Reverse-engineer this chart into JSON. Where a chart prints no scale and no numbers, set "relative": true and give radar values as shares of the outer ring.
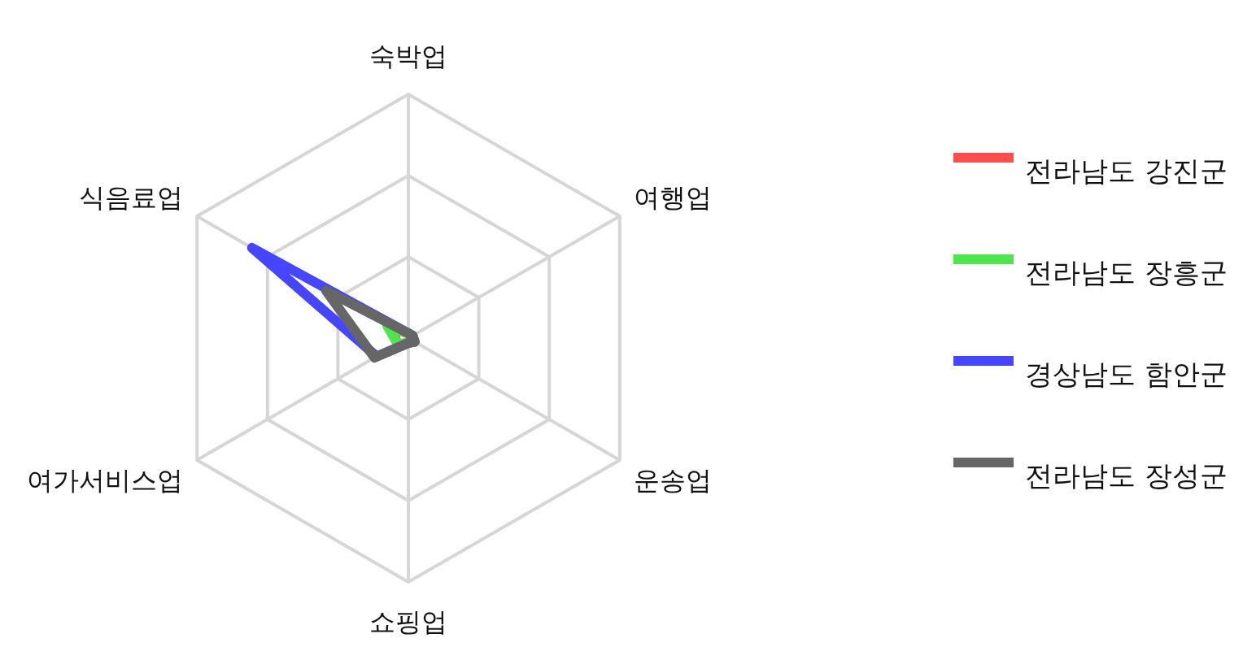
{
  "chart_data": {
    "type": "radar",
    "relative": true,
    "legend": "right",
    "categories": [
      "숙박업",
      "여행업",
      "운송업",
      "쇼핑업",
      "여가서비스업",
      "식음료업"
    ],
    "series": [
      {
        "name": "전라남도 강진군",
        "color": "#ff4d4d",
        "values": [
          0.02,
          0.02,
          0.02,
          0.02,
          0.05,
          0.08
        ]
      },
      {
        "name": "전라남도 장흥군",
        "color": "#4de64d",
        "values": [
          0.02,
          0.02,
          0.02,
          0.02,
          0.05,
          0.1
        ]
      },
      {
        "name": "경상남도 함안군",
        "color": "#4646ff",
        "values": [
          0.02,
          0.02,
          0.03,
          0.02,
          0.15,
          0.74
        ]
      },
      {
        "name": "전라남도 장성군",
        "color": "#666666",
        "values": [
          0.02,
          0.02,
          0.03,
          0.02,
          0.16,
          0.39
        ]
      }
    ]
  }
}
